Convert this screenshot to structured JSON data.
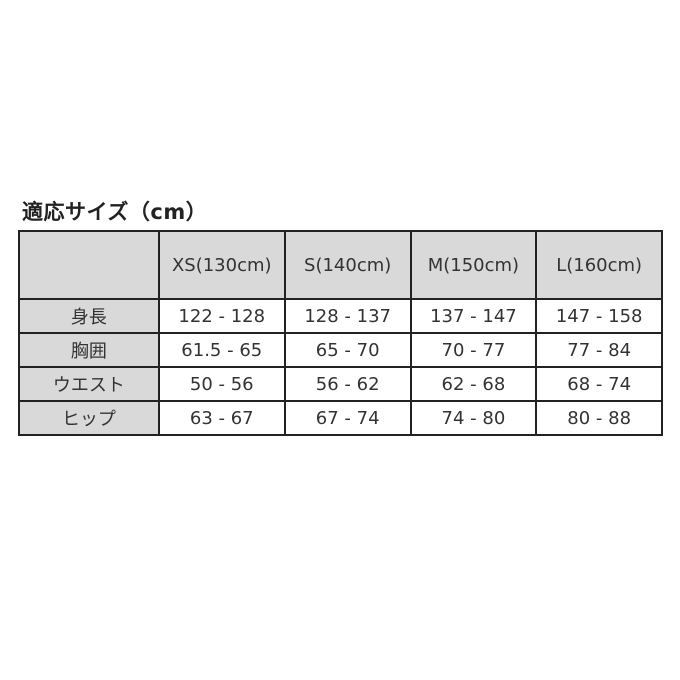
{
  "title": "適応サイズ（cm）",
  "table": {
    "headers": [
      "",
      "XS(130cm)",
      "S(140cm)",
      "M(150cm)",
      "L(160cm)"
    ],
    "rows": [
      {
        "label": "身長",
        "values": [
          "122 - 128",
          "128 - 137",
          "137 - 147",
          "147 - 158"
        ]
      },
      {
        "label": "胸囲",
        "values": [
          "61.5 - 65",
          "65 - 70",
          "70 - 77",
          "77 - 84"
        ]
      },
      {
        "label": "ウエスト",
        "values": [
          "50 - 56",
          "56 - 62",
          "62 - 68",
          "68 - 74"
        ]
      },
      {
        "label": "ヒップ",
        "values": [
          "63 - 67",
          "67 - 74",
          "74 - 80",
          "80 - 88"
        ]
      }
    ]
  },
  "colors": {
    "header_bg": "#d9d9d9",
    "border": "#222222"
  }
}
